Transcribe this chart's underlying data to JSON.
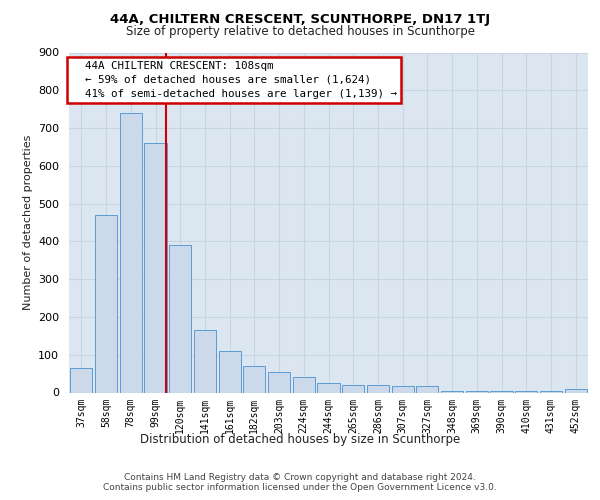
{
  "title1": "44A, CHILTERN CRESCENT, SCUNTHORPE, DN17 1TJ",
  "title2": "Size of property relative to detached houses in Scunthorpe",
  "xlabel": "Distribution of detached houses by size in Scunthorpe",
  "ylabel": "Number of detached properties",
  "footnote1": "Contains HM Land Registry data © Crown copyright and database right 2024.",
  "footnote2": "Contains public sector information licensed under the Open Government Licence v3.0.",
  "bar_labels": [
    "37sqm",
    "58sqm",
    "78sqm",
    "99sqm",
    "120sqm",
    "141sqm",
    "161sqm",
    "182sqm",
    "203sqm",
    "224sqm",
    "244sqm",
    "265sqm",
    "286sqm",
    "307sqm",
    "327sqm",
    "348sqm",
    "369sqm",
    "390sqm",
    "410sqm",
    "431sqm",
    "452sqm"
  ],
  "bar_values": [
    65,
    470,
    740,
    660,
    390,
    165,
    110,
    70,
    55,
    40,
    25,
    20,
    20,
    18,
    18,
    4,
    4,
    4,
    4,
    4,
    10
  ],
  "bar_color": "#ccd9ea",
  "bar_edge_color": "#5b9bd5",
  "annotation_line1": "  44A CHILTERN CRESCENT: 108sqm",
  "annotation_line2": "  ← 59% of detached houses are smaller (1,624)",
  "annotation_line3": "  41% of semi-detached houses are larger (1,139) →",
  "annotation_box_color": "#ffffff",
  "annotation_box_edge_color": "#cc0000",
  "vline_color": "#cc0000",
  "vline_x": 3.42,
  "ylim": [
    0,
    900
  ],
  "yticks": [
    0,
    100,
    200,
    300,
    400,
    500,
    600,
    700,
    800,
    900
  ],
  "grid_color": "#c8d4e3",
  "bg_color": "#dce6f1",
  "title1_fontsize": 9.5,
  "title2_fontsize": 8.5
}
